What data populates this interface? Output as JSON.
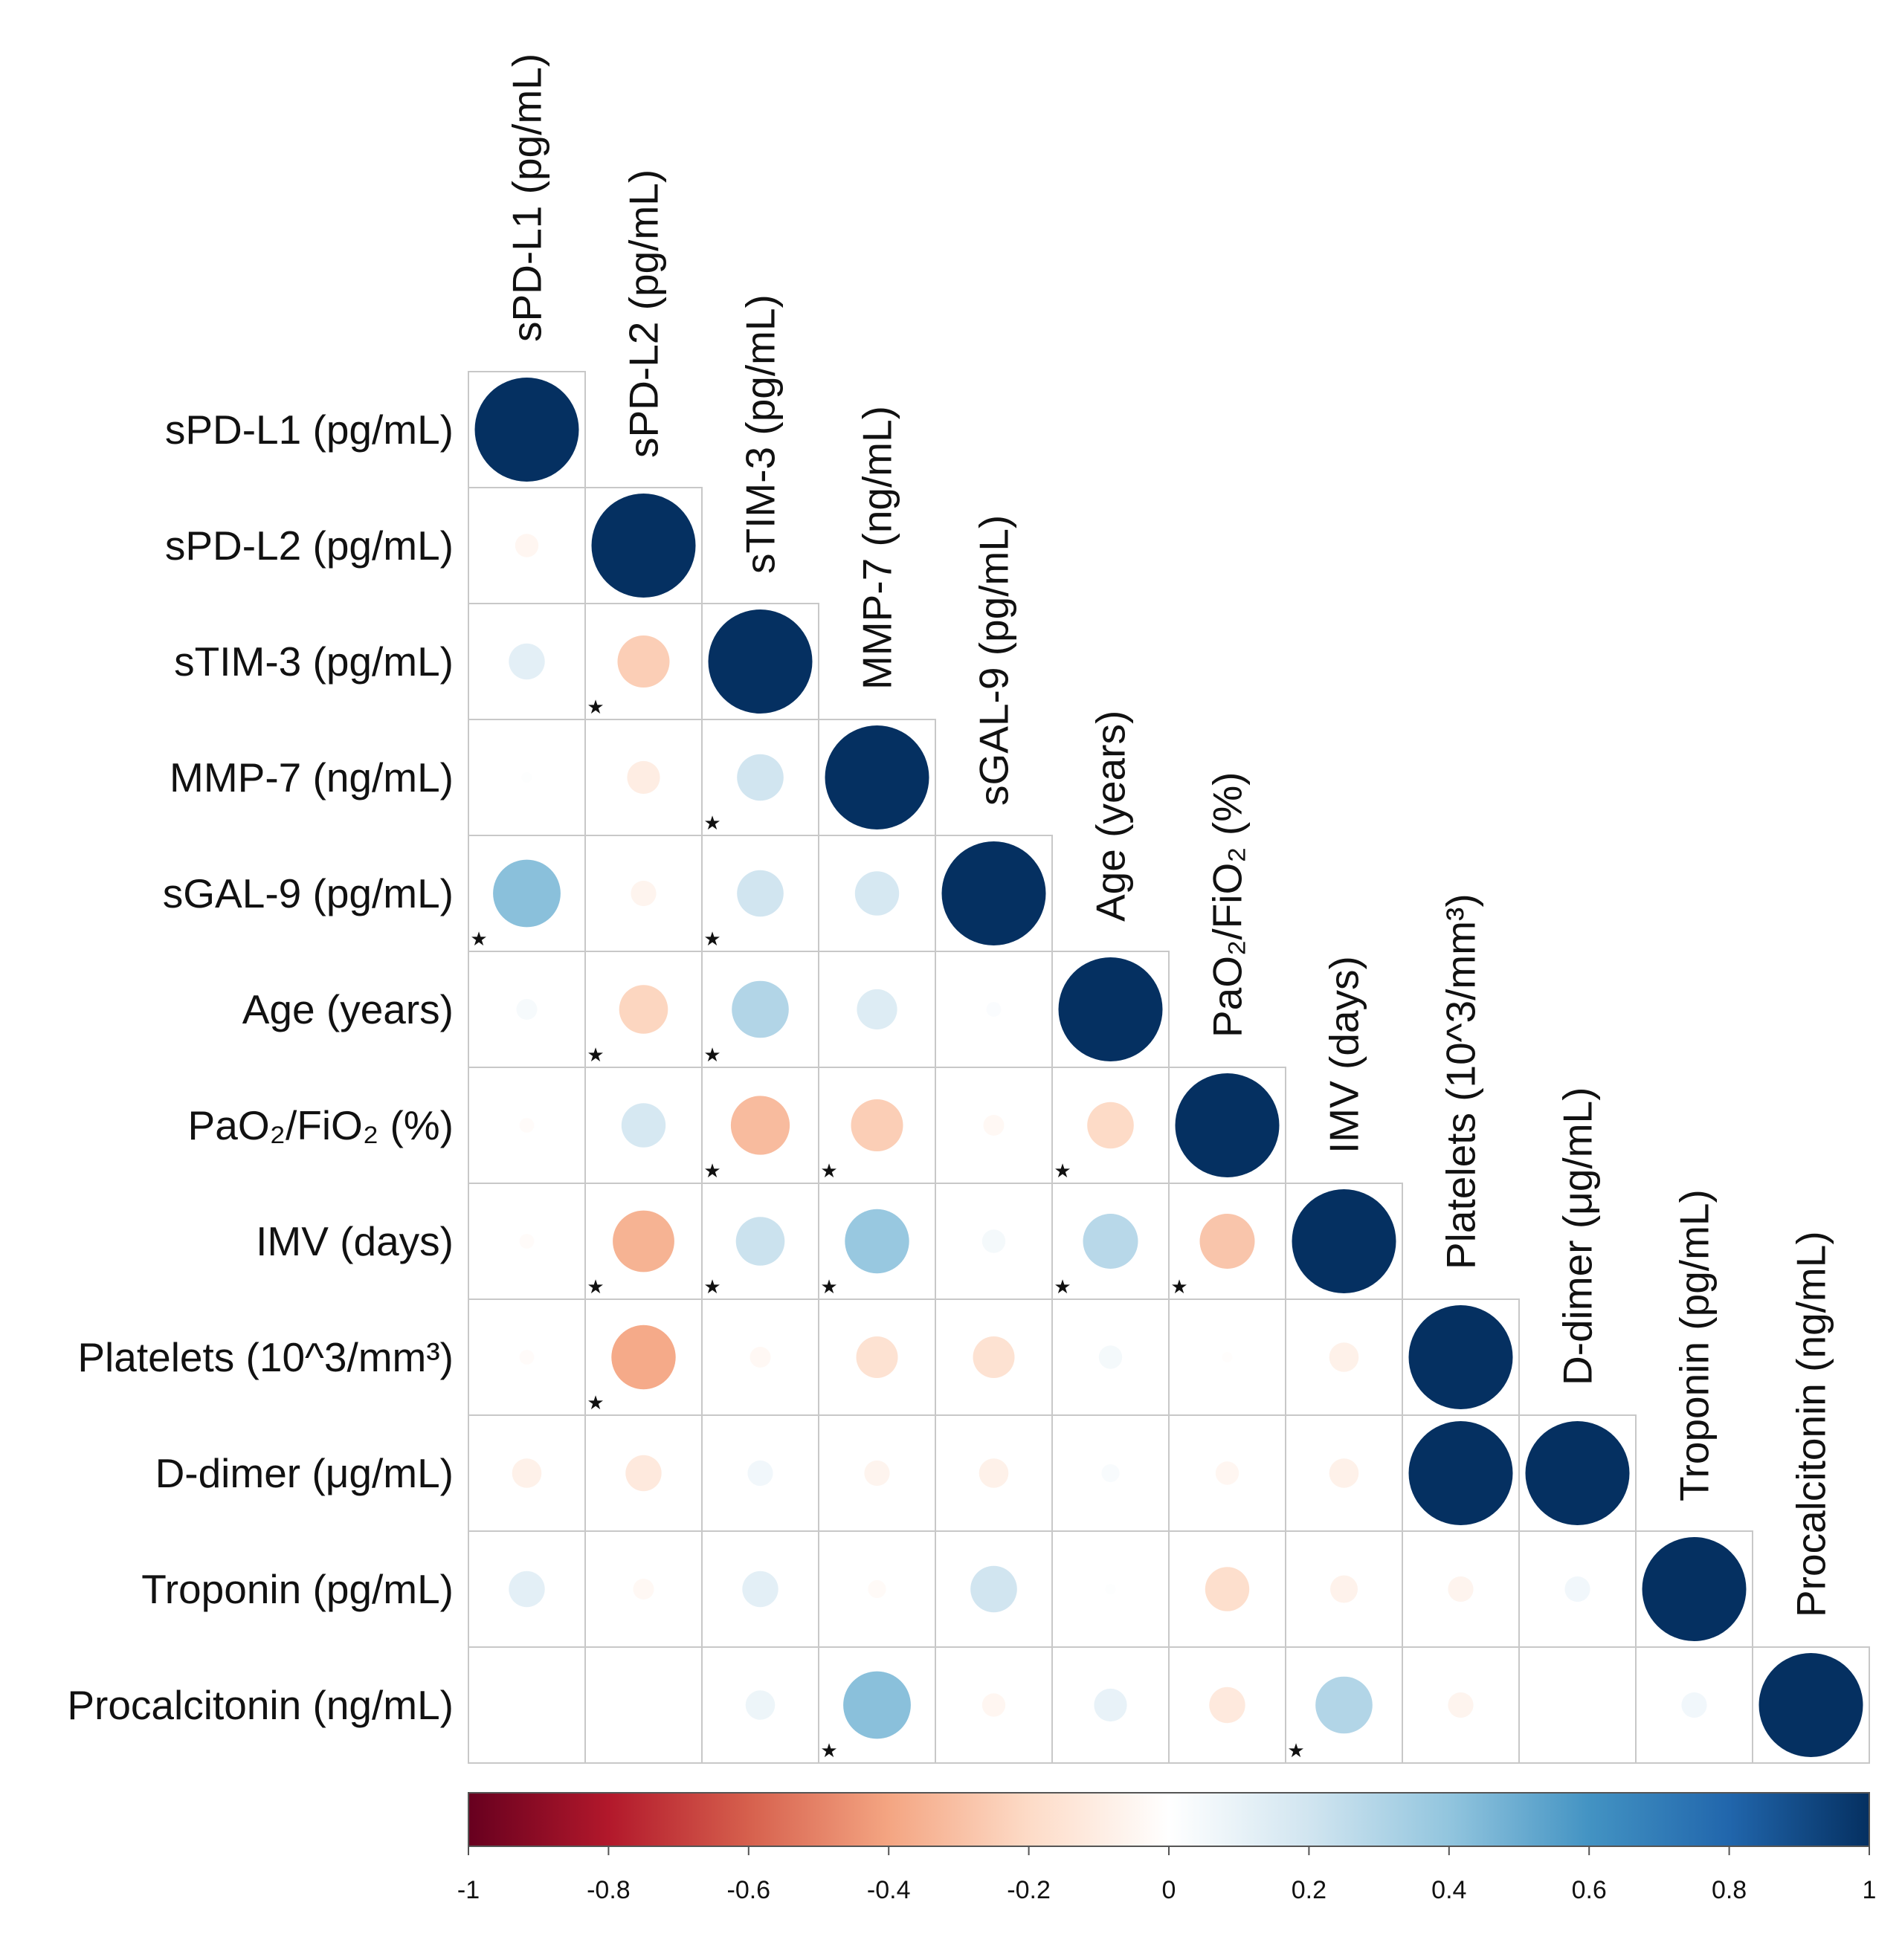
{
  "chart_data": {
    "type": "heatmap",
    "style": "lower-triangle correlation plot, circle size and color proportional to correlation",
    "variables": [
      "sPD-L1 (pg/mL)",
      "sPD-L2 (pg/mL)",
      "sTIM-3 (pg/mL)",
      "MMP-7 (ng/mL)",
      "sGAL-9 (pg/mL)",
      "Age (years)",
      "PaO₂/FiO₂ (%)",
      "IMV (days)",
      "Platelets (10^3/mm³)",
      "D-dimer (μg/mL)",
      "Troponin (pg/mL)",
      "Procalcitonin (ng/mL)"
    ],
    "correlations": [
      [
        1
      ],
      [
        -0.05,
        1
      ],
      [
        0.12,
        -0.25,
        1
      ],
      [
        0.01,
        -0.1,
        0.2,
        1
      ],
      [
        0.42,
        -0.06,
        0.2,
        0.18,
        1
      ],
      [
        0.04,
        -0.22,
        0.3,
        0.15,
        0.02,
        1
      ],
      [
        -0.02,
        0.18,
        -0.32,
        -0.25,
        -0.04,
        -0.2,
        1
      ],
      [
        -0.02,
        -0.35,
        0.22,
        0.38,
        0.05,
        0.28,
        -0.28,
        1
      ],
      [
        -0.02,
        -0.38,
        -0.04,
        -0.16,
        -0.16,
        0.05,
        -0.01,
        -0.08,
        1
      ],
      [
        -0.08,
        -0.12,
        0.06,
        -0.06,
        -0.08,
        0.03,
        -0.05,
        -0.08,
        1,
        1
      ],
      [
        0.12,
        -0.04,
        0.12,
        -0.03,
        0.2,
        0.01,
        -0.18,
        -0.07,
        -0.06,
        0.06,
        1
      ],
      [
        0,
        0,
        0.08,
        0.42,
        -0.05,
        0.1,
        -0.12,
        0.3,
        -0.06,
        0,
        0.06,
        1
      ]
    ],
    "significant": [
      [
        2,
        1
      ],
      [
        3,
        2
      ],
      [
        4,
        0
      ],
      [
        4,
        2
      ],
      [
        5,
        1
      ],
      [
        5,
        2
      ],
      [
        6,
        2
      ],
      [
        6,
        3
      ],
      [
        6,
        5
      ],
      [
        7,
        1
      ],
      [
        7,
        2
      ],
      [
        7,
        3
      ],
      [
        7,
        5
      ],
      [
        7,
        6
      ],
      [
        8,
        1
      ],
      [
        11,
        3
      ],
      [
        11,
        7
      ]
    ],
    "significance_marker": "★",
    "colorbar": {
      "range": [
        -1,
        1
      ],
      "ticks": [
        "-1",
        "-0.8",
        "-0.6",
        "-0.4",
        "-0.2",
        "0",
        "0.2",
        "0.4",
        "0.6",
        "0.8",
        "1"
      ],
      "colors": [
        "#67001f",
        "#b2182b",
        "#d6604d",
        "#f4a582",
        "#fddbc7",
        "#ffffff",
        "#d1e5f0",
        "#92c5de",
        "#4393c3",
        "#2166ac",
        "#053061"
      ]
    },
    "title": "",
    "xlabel": "",
    "ylabel": ""
  }
}
